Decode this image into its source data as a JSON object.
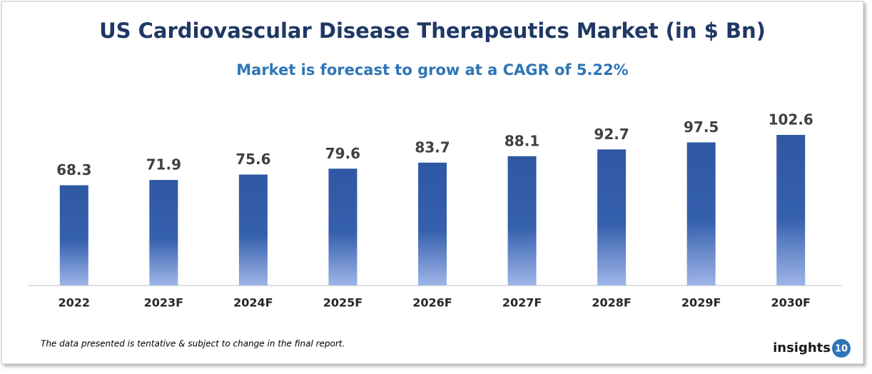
{
  "chart_data": {
    "type": "bar",
    "title": "US Cardiovascular Disease Therapeutics Market (in $ Bn)",
    "subtitle": "Market is forecast to grow at a CAGR of 5.22%",
    "categories": [
      "2022",
      "2023F",
      "2024F",
      "2025F",
      "2026F",
      "2027F",
      "2028F",
      "2029F",
      "2030F"
    ],
    "values": [
      68.3,
      71.9,
      75.6,
      79.6,
      83.7,
      88.1,
      92.7,
      97.5,
      102.6
    ],
    "color": "#2f58a4",
    "footnote": "The data presented is tentative & subject to change in the final report.",
    "logo": {
      "text": "insights",
      "badge": "10"
    }
  }
}
